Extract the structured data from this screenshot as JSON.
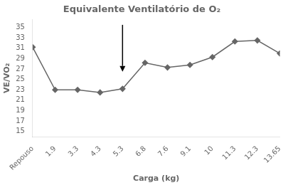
{
  "chart_data": {
    "type": "line",
    "title": "Equivalente Ventilatório de O₂",
    "xlabel": "Carga (kg)",
    "ylabel": "VE/VO₂",
    "categories": [
      "Repouso",
      "1.9",
      "3.3",
      "4.3",
      "5.3",
      "6.8",
      "7.6",
      "9.1",
      "10",
      "11.3",
      "12.3",
      "13.65"
    ],
    "values": [
      31.2,
      23.0,
      23.0,
      22.5,
      23.2,
      28.2,
      27.3,
      27.8,
      29.3,
      32.3,
      32.5,
      30.0
    ],
    "color": "#666666",
    "marker": "diamond",
    "ylim": [
      14.0,
      36.5
    ],
    "yticks": [
      15,
      17,
      19,
      21,
      23,
      25,
      27,
      29,
      31,
      33,
      35
    ],
    "grid": false,
    "annotations": [
      {
        "type": "arrow",
        "x": "5.3",
        "y_from": 35.5,
        "y_to": 26.5
      }
    ]
  }
}
